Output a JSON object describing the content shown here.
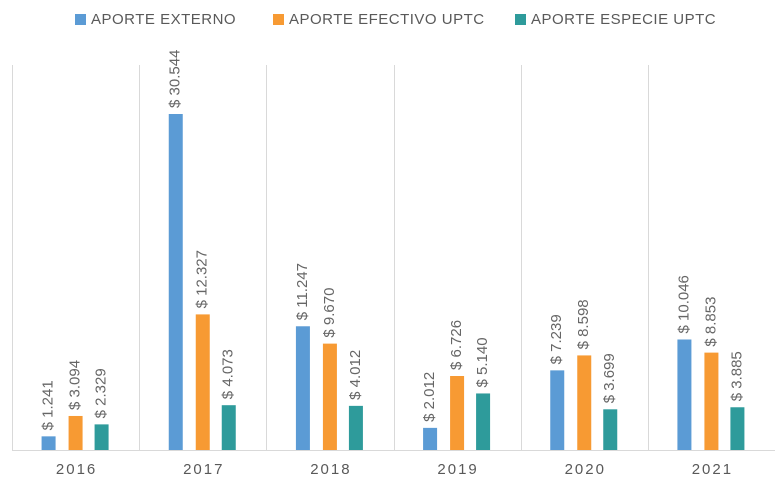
{
  "chart_data": {
    "type": "bar",
    "categories": [
      "2016",
      "2017",
      "2018",
      "2019",
      "2020",
      "2021"
    ],
    "series": [
      {
        "name": "APORTE EXTERNO",
        "color": "#5b9bd5",
        "values": [
          1241,
          30544,
          11247,
          2012,
          7239,
          10046
        ],
        "value_labels": [
          "$ 1.241",
          "$ 30.544",
          "$ 11.247",
          "$ 2.012",
          "$ 7.239",
          "$ 10.046"
        ]
      },
      {
        "name": "APORTE  EFECTIVO UPTC",
        "color": "#f79a33",
        "values": [
          3094,
          12327,
          9670,
          6726,
          8598,
          8853
        ],
        "value_labels": [
          "$ 3.094",
          "$ 12.327",
          "$ 9.670",
          "$ 6.726",
          "$ 8.598",
          "$ 8.853"
        ]
      },
      {
        "name": "APORTE ESPECIE UPTC",
        "color": "#2e9b9b",
        "values": [
          2329,
          4073,
          4012,
          5140,
          3699,
          3885
        ],
        "value_labels": [
          "$ 2.329",
          "$ 4.073",
          "$ 4.012",
          "$ 5.140",
          "$ 3.699",
          "$ 3.885"
        ]
      }
    ]
  }
}
